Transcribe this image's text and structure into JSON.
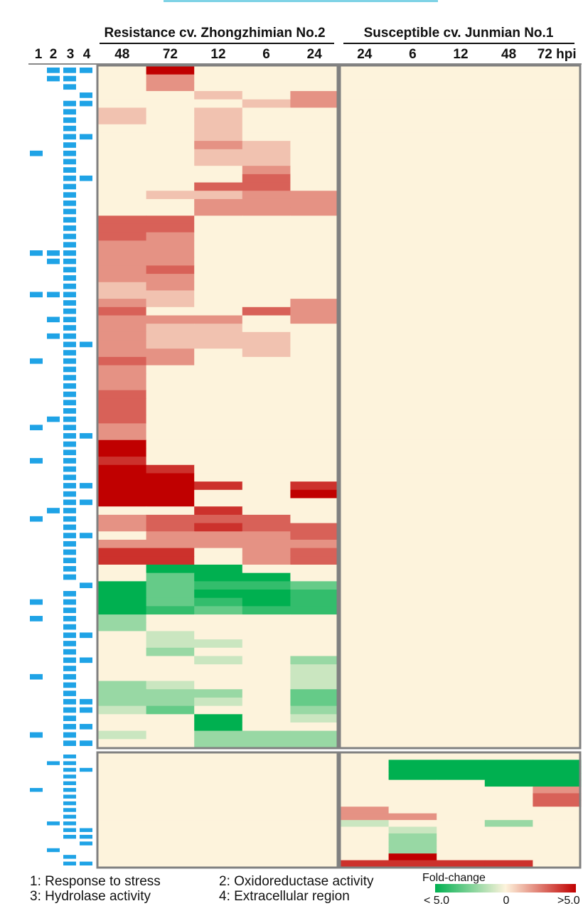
{
  "chart_data": {
    "type": "heatmap",
    "group_headers": [
      "Resistance cv. Zhongzhimian No.2",
      "Susceptible cv. Junmian No.1"
    ],
    "annotation_columns": [
      "1",
      "2",
      "3",
      "4"
    ],
    "resistant_columns": [
      "48",
      "72",
      "12",
      "6",
      "24"
    ],
    "susceptible_columns": [
      "24",
      "6",
      "12",
      "48",
      "72 hpi"
    ],
    "legend": {
      "title": "Fold-change",
      "min_label": "< 5.0",
      "mid_label": "0",
      "max_label": ">5.0",
      "colors": [
        "#00b050",
        "#fdf3dc",
        "#c00000"
      ],
      "range": [
        -5,
        5
      ]
    },
    "category_legend": [
      "1: Response to stress",
      "2: Oxidoreductase activity",
      "3: Hydrolase activity",
      "4: Extracellular region"
    ],
    "resistant_block": {
      "rows": 82,
      "values": [
        [
          0,
          5,
          0,
          0,
          0
        ],
        [
          0,
          2,
          0,
          0,
          0
        ],
        [
          0,
          2,
          0,
          0,
          0
        ],
        [
          0,
          0,
          1,
          0,
          2
        ],
        [
          0,
          0,
          0,
          1,
          2
        ],
        [
          1,
          0,
          1,
          0,
          0
        ],
        [
          1,
          0,
          1,
          0,
          0
        ],
        [
          0,
          0,
          1,
          0,
          0
        ],
        [
          0,
          0,
          1,
          0,
          0
        ],
        [
          0,
          0,
          2,
          1,
          0
        ],
        [
          0,
          0,
          1,
          1,
          0
        ],
        [
          0,
          0,
          1,
          1,
          0
        ],
        [
          0,
          0,
          0,
          2,
          0
        ],
        [
          0,
          0,
          0,
          3,
          0
        ],
        [
          0,
          0,
          3,
          3,
          0
        ],
        [
          0,
          1,
          1,
          2,
          2
        ],
        [
          0,
          0,
          2,
          2,
          2
        ],
        [
          0,
          0,
          2,
          2,
          2
        ],
        [
          3,
          3,
          0,
          0,
          0
        ],
        [
          3,
          3,
          0,
          0,
          0
        ],
        [
          3,
          2,
          0,
          0,
          0
        ],
        [
          2,
          2,
          0,
          0,
          0
        ],
        [
          2,
          2,
          0,
          0,
          0
        ],
        [
          2,
          2,
          0,
          0,
          0
        ],
        [
          2,
          3,
          0,
          0,
          0
        ],
        [
          2,
          2,
          0,
          0,
          0
        ],
        [
          1,
          2,
          0,
          0,
          0
        ],
        [
          1,
          1,
          0,
          0,
          0
        ],
        [
          2,
          1,
          0,
          0,
          2
        ],
        [
          3,
          0,
          0,
          3,
          2
        ],
        [
          2,
          2,
          2,
          0,
          2
        ],
        [
          2,
          1,
          1,
          0,
          0
        ],
        [
          2,
          1,
          1,
          1,
          0
        ],
        [
          2,
          1,
          1,
          1,
          0
        ],
        [
          2,
          2,
          0,
          1,
          0
        ],
        [
          3,
          2,
          0,
          0,
          0
        ],
        [
          2,
          0,
          0,
          0,
          0
        ],
        [
          2,
          0,
          0,
          0,
          0
        ],
        [
          2,
          0,
          0,
          0,
          0
        ],
        [
          3,
          0,
          0,
          0,
          0
        ],
        [
          3,
          0,
          0,
          0,
          0
        ],
        [
          3,
          0,
          0,
          0,
          0
        ],
        [
          3,
          0,
          0,
          0,
          0
        ],
        [
          2,
          0,
          0,
          0,
          0
        ],
        [
          2,
          0,
          0,
          0,
          0
        ],
        [
          5,
          0,
          0,
          0,
          0
        ],
        [
          5,
          0,
          0,
          0,
          0
        ],
        [
          4,
          0,
          0,
          0,
          0
        ],
        [
          5,
          4,
          0,
          0,
          0
        ],
        [
          5,
          5,
          0,
          0,
          0
        ],
        [
          5,
          5,
          4,
          0,
          4
        ],
        [
          5,
          5,
          0,
          0,
          5
        ],
        [
          5,
          5,
          0,
          0,
          0
        ],
        [
          0,
          0,
          4,
          0,
          0
        ],
        [
          2,
          3,
          3,
          3,
          0
        ],
        [
          2,
          3,
          4,
          3,
          3
        ],
        [
          0,
          2,
          2,
          2,
          3
        ],
        [
          2,
          2,
          2,
          2,
          2
        ],
        [
          4,
          4,
          0,
          2,
          3
        ],
        [
          4,
          4,
          0,
          2,
          3
        ],
        [
          0,
          -5,
          -5,
          0,
          0
        ],
        [
          0,
          -3,
          -5,
          -5,
          0
        ],
        [
          -5,
          -3,
          -4,
          -4,
          -3
        ],
        [
          -5,
          -3,
          -5,
          -5,
          -4
        ],
        [
          -5,
          -3,
          -4,
          -5,
          -4
        ],
        [
          -5,
          -4,
          -3,
          -4,
          -4
        ],
        [
          -2,
          0,
          0,
          0,
          0
        ],
        [
          -2,
          0,
          0,
          0,
          0
        ],
        [
          0,
          -1,
          0,
          0,
          0
        ],
        [
          0,
          -1,
          -1,
          0,
          0
        ],
        [
          0,
          -2,
          0,
          0,
          0
        ],
        [
          0,
          0,
          -1,
          0,
          -2
        ],
        [
          0,
          0,
          0,
          0,
          -1
        ],
        [
          0,
          0,
          0,
          0,
          -1
        ],
        [
          -2,
          -1,
          0,
          0,
          -1
        ],
        [
          -2,
          -2,
          -2,
          0,
          -3
        ],
        [
          -2,
          -2,
          -1,
          0,
          -3
        ],
        [
          -1,
          -3,
          0,
          0,
          -2
        ],
        [
          0,
          0,
          -5,
          0,
          -1
        ],
        [
          0,
          0,
          -5,
          0,
          0
        ],
        [
          -1,
          0,
          -2,
          -2,
          -2
        ],
        [
          0,
          0,
          -2,
          -2,
          -2
        ]
      ]
    },
    "bottom_block": {
      "rows": 14,
      "values": [
        [
          0,
          0,
          0,
          0,
          0
        ],
        [
          0,
          -5,
          -5,
          -5,
          -5
        ],
        [
          0,
          -5,
          -5,
          -5,
          -5
        ],
        [
          0,
          -5,
          -5,
          -5,
          -5
        ],
        [
          0,
          0,
          0,
          -5,
          -5
        ],
        [
          0,
          0,
          0,
          0,
          2
        ],
        [
          0,
          0,
          0,
          0,
          3
        ],
        [
          0,
          0,
          0,
          0,
          3
        ],
        [
          2,
          0,
          0,
          0,
          0
        ],
        [
          2,
          2,
          0,
          0,
          0
        ],
        [
          -1,
          0,
          0,
          -2,
          0
        ],
        [
          0,
          -1,
          0,
          0,
          0
        ],
        [
          0,
          -2,
          0,
          0,
          0
        ],
        [
          0,
          -2,
          0,
          0,
          0
        ]
      ]
    },
    "bottom_last_rows": [
      [
        0,
        -2,
        0,
        0,
        0
      ],
      [
        0,
        5,
        0,
        0,
        0
      ],
      [
        4,
        4,
        4,
        4,
        0
      ]
    ]
  }
}
